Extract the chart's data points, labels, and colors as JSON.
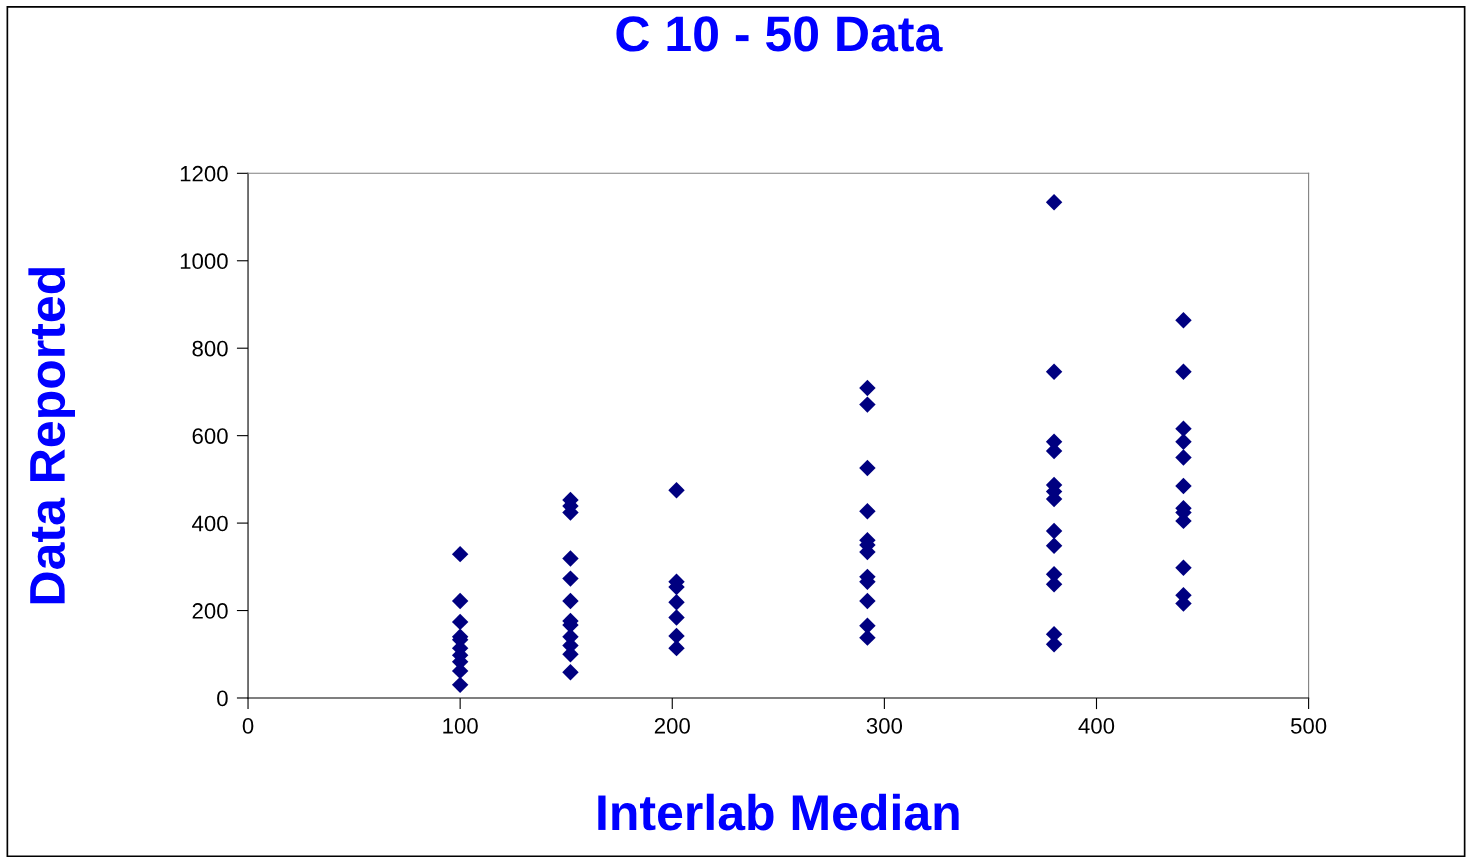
{
  "chart_data": {
    "type": "scatter",
    "title": "C 10 - 50 Data",
    "xlabel": "Interlab Median",
    "ylabel": "Data Reported",
    "xlim": [
      0,
      500
    ],
    "xticks": [
      0,
      100,
      200,
      300,
      400,
      500
    ],
    "ylim": [
      0,
      1200
    ],
    "yticks": [
      0,
      200,
      400,
      600,
      800,
      1000,
      1200
    ],
    "grid": false,
    "legend": false,
    "marker": "diamond",
    "series": [
      {
        "color": "#000080",
        "x": [
          100,
          100,
          100,
          100,
          100,
          100,
          100,
          100,
          100,
          100,
          152,
          152,
          152,
          152,
          152,
          152,
          152,
          152,
          152,
          152,
          152,
          152,
          202,
          202,
          202,
          202,
          202,
          202,
          202,
          292,
          292,
          292,
          292,
          292,
          292,
          292,
          292,
          292,
          292,
          292,
          292,
          380,
          380,
          380,
          380,
          380,
          380,
          380,
          380,
          380,
          380,
          380,
          380,
          380,
          441,
          441,
          441,
          441,
          441,
          441,
          441,
          441,
          441,
          441,
          441,
          441
        ],
        "values": [
          329,
          222,
          174,
          140,
          133,
          114,
          98,
          83,
          62,
          30,
          453,
          439,
          424,
          319,
          273,
          222,
          176,
          167,
          140,
          120,
          100,
          59,
          475,
          266,
          254,
          219,
          184,
          142,
          114,
          709,
          671,
          526,
          427,
          361,
          350,
          334,
          277,
          266,
          222,
          165,
          138,
          1134,
          746,
          586,
          565,
          487,
          472,
          455,
          382,
          348,
          283,
          260,
          146,
          123,
          864,
          746,
          616,
          586,
          550,
          485,
          434,
          424,
          405,
          298,
          235,
          216
        ]
      }
    ]
  }
}
